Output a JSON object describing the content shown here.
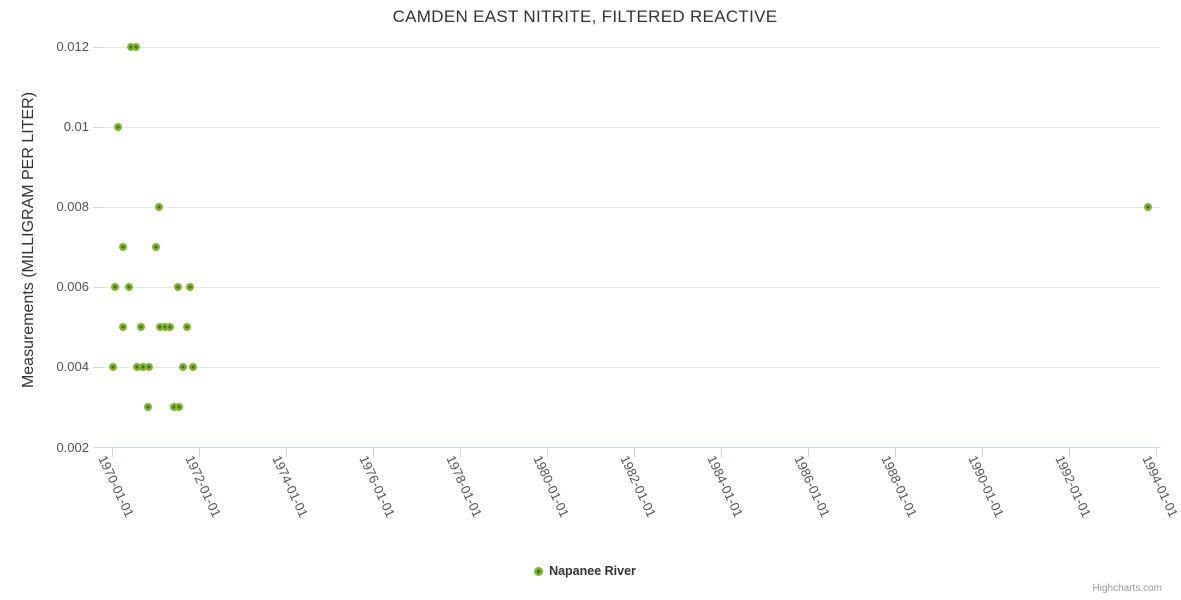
{
  "header": {
    "title": "CAMDEN EAST NITRITE, FILTERED REACTIVE"
  },
  "credits": {
    "label": "Highcharts.com"
  },
  "legend": {
    "items": [
      {
        "label": "Napanee River"
      }
    ]
  },
  "chart_data": {
    "type": "scatter",
    "title": "CAMDEN EAST NITRITE, FILTERED REACTIVE",
    "xlabel": "",
    "ylabel": "Measurements (MILLIGRAM PER LITER)",
    "xlim": [
      1969.79,
      1994.09
    ],
    "ylim": [
      0.002,
      0.012
    ],
    "grid": "horizontal-only",
    "legend_position": "bottom-center",
    "x_ticks": [
      {
        "x": 1970,
        "label": "1970-01-01"
      },
      {
        "x": 1972,
        "label": "1972-01-01"
      },
      {
        "x": 1974,
        "label": "1974-01-01"
      },
      {
        "x": 1976,
        "label": "1976-01-01"
      },
      {
        "x": 1978,
        "label": "1978-01-01"
      },
      {
        "x": 1980,
        "label": "1980-01-01"
      },
      {
        "x": 1982,
        "label": "1982-01-01"
      },
      {
        "x": 1984,
        "label": "1984-01-01"
      },
      {
        "x": 1986,
        "label": "1986-01-01"
      },
      {
        "x": 1988,
        "label": "1988-01-01"
      },
      {
        "x": 1990,
        "label": "1990-01-01"
      },
      {
        "x": 1992,
        "label": "1992-01-01"
      },
      {
        "x": 1994,
        "label": "1994-01-01"
      }
    ],
    "y_ticks": [
      {
        "y": 0.002,
        "label": "0.002"
      },
      {
        "y": 0.004,
        "label": "0.004"
      },
      {
        "y": 0.006,
        "label": "0.006"
      },
      {
        "y": 0.008,
        "label": "0.008"
      },
      {
        "y": 0.01,
        "label": "0.01"
      },
      {
        "y": 0.012,
        "label": "0.012"
      }
    ],
    "series": [
      {
        "name": "Napanee River",
        "color": "#7db82a",
        "marker_core_color": "#4a6f12",
        "points": [
          {
            "x": 1970.02,
            "y": 0.004
          },
          {
            "x": 1970.07,
            "y": 0.006
          },
          {
            "x": 1970.13,
            "y": 0.01
          },
          {
            "x": 1970.25,
            "y": 0.007
          },
          {
            "x": 1970.25,
            "y": 0.005
          },
          {
            "x": 1970.39,
            "y": 0.006
          },
          {
            "x": 1970.43,
            "y": 0.012
          },
          {
            "x": 1970.55,
            "y": 0.012
          },
          {
            "x": 1970.57,
            "y": 0.004
          },
          {
            "x": 1970.66,
            "y": 0.005
          },
          {
            "x": 1970.71,
            "y": 0.004
          },
          {
            "x": 1970.82,
            "y": 0.003
          },
          {
            "x": 1970.85,
            "y": 0.004
          },
          {
            "x": 1971.01,
            "y": 0.007
          },
          {
            "x": 1971.08,
            "y": 0.008
          },
          {
            "x": 1971.1,
            "y": 0.005
          },
          {
            "x": 1971.22,
            "y": 0.005
          },
          {
            "x": 1971.33,
            "y": 0.005
          },
          {
            "x": 1971.42,
            "y": 0.003
          },
          {
            "x": 1971.51,
            "y": 0.006
          },
          {
            "x": 1971.54,
            "y": 0.003
          },
          {
            "x": 1971.63,
            "y": 0.004
          },
          {
            "x": 1971.72,
            "y": 0.005
          },
          {
            "x": 1971.79,
            "y": 0.006
          },
          {
            "x": 1971.86,
            "y": 0.004
          },
          {
            "x": 1993.82,
            "y": 0.008
          }
        ]
      }
    ]
  }
}
